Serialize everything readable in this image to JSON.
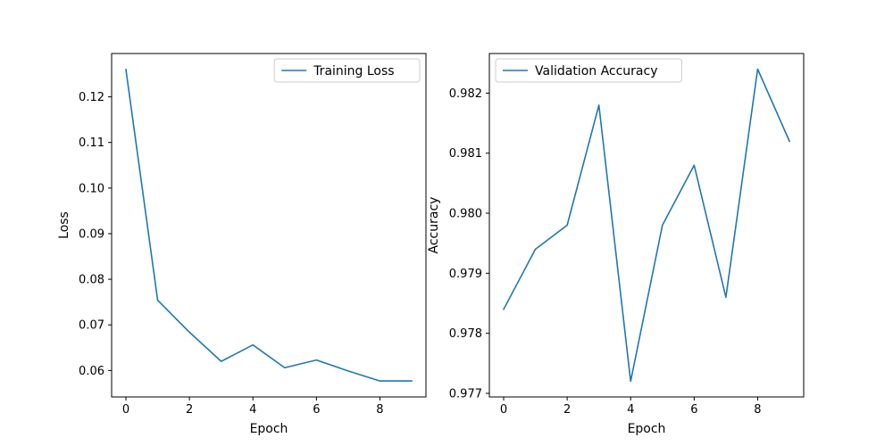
{
  "chart_data": [
    {
      "type": "line",
      "title": "",
      "xlabel": "Epoch",
      "ylabel": "Loss",
      "x": [
        0,
        1,
        2,
        3,
        4,
        5,
        6,
        7,
        8,
        9
      ],
      "series": [
        {
          "name": "Training Loss",
          "color": "#1f77b4",
          "values": [
            0.126,
            0.0754,
            0.0684,
            0.062,
            0.0656,
            0.0606,
            0.0623,
            0.0599,
            0.0577,
            0.0577
          ]
        }
      ],
      "xlim": [
        -0.45,
        9.45
      ],
      "ylim": [
        0.0542,
        0.1295
      ],
      "xticks": [
        0,
        2,
        4,
        6,
        8
      ],
      "xtick_labels": [
        "0",
        "2",
        "4",
        "6",
        "8"
      ],
      "yticks": [
        0.06,
        0.07,
        0.08,
        0.09,
        0.1,
        0.11,
        0.12
      ],
      "ytick_labels": [
        "0.06",
        "0.07",
        "0.08",
        "0.09",
        "0.10",
        "0.11",
        "0.12"
      ],
      "legend_position": "upper right",
      "grid": false
    },
    {
      "type": "line",
      "title": "",
      "xlabel": "Epoch",
      "ylabel": "Accuracy",
      "x": [
        0,
        1,
        2,
        3,
        4,
        5,
        6,
        7,
        8,
        9
      ],
      "series": [
        {
          "name": "Validation Accuracy",
          "color": "#1f77b4",
          "values": [
            0.9784,
            0.9794,
            0.9798,
            0.9818,
            0.9772,
            0.9798,
            0.9808,
            0.9786,
            0.9824,
            0.9812
          ]
        }
      ],
      "xlim": [
        -0.45,
        9.45
      ],
      "ylim": [
        0.97694,
        0.98266
      ],
      "xticks": [
        0,
        2,
        4,
        6,
        8
      ],
      "xtick_labels": [
        "0",
        "2",
        "4",
        "6",
        "8"
      ],
      "yticks": [
        0.977,
        0.978,
        0.979,
        0.98,
        0.981,
        0.982
      ],
      "ytick_labels": [
        "0.977",
        "0.978",
        "0.979",
        "0.980",
        "0.981",
        "0.982"
      ],
      "legend_position": "upper left",
      "grid": false
    }
  ]
}
